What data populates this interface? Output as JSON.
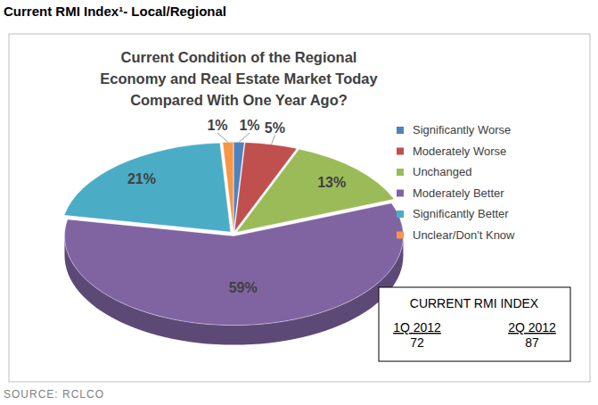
{
  "header": {
    "title": "Current RMI Index¹- Local/Regional"
  },
  "chart_data": {
    "type": "pie",
    "title": "Current Condition of the Regional Economy and Real Estate Market Today Compared With One Year Ago?",
    "categories": [
      "Significantly Worse",
      "Moderately Worse",
      "Unchanged",
      "Moderately Better",
      "Significantly Better",
      "Unclear/Don't Know"
    ],
    "values": [
      1,
      5,
      13,
      59,
      21,
      1
    ],
    "value_labels": [
      "1%",
      "5%",
      "13%",
      "59%",
      "21%",
      "1%"
    ],
    "colors": [
      "#4f81bd",
      "#c0504d",
      "#9bbb59",
      "#8064a2",
      "#4bacc6",
      "#f79646"
    ],
    "data_labels": true,
    "legend": "right"
  },
  "rmi_index": {
    "title": "CURRENT RMI INDEX",
    "periods": [
      "1Q 2012",
      "2Q 2012"
    ],
    "values": [
      72,
      87
    ]
  },
  "source": "SOURCE: RCLCO"
}
